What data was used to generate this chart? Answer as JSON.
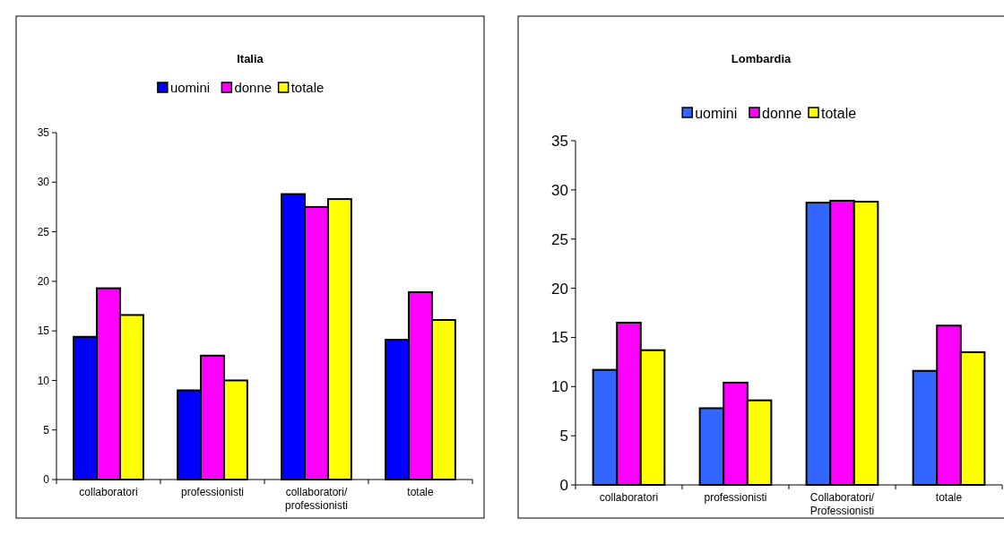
{
  "chart_data": [
    {
      "type": "bar",
      "title": "Italia",
      "categories": [
        "collaboratori",
        "professionisti",
        "collaboratori/professionisti",
        "totale"
      ],
      "series": [
        {
          "name": "uomini",
          "color": "#0000ff",
          "values": [
            14.4,
            9.0,
            28.8,
            14.1
          ]
        },
        {
          "name": "donne",
          "color": "#ff00ff",
          "values": [
            19.3,
            12.5,
            27.5,
            18.9
          ]
        },
        {
          "name": "totale",
          "color": "#ffff00",
          "values": [
            16.6,
            10.0,
            28.3,
            16.1
          ]
        }
      ],
      "ylim": [
        0,
        35
      ],
      "yticks": [
        0,
        5,
        10,
        15,
        20,
        25,
        30,
        35
      ],
      "grid": false,
      "legend": "top"
    },
    {
      "type": "bar",
      "title": "Lombardia",
      "categories": [
        "collaboratori",
        "professionisti",
        "Collaboratori/Professionisti",
        "totale"
      ],
      "series": [
        {
          "name": "uomini",
          "color": "#3366ff",
          "values": [
            11.7,
            7.8,
            28.7,
            11.6
          ]
        },
        {
          "name": "donne",
          "color": "#ff00ff",
          "values": [
            16.5,
            10.4,
            28.9,
            16.2
          ]
        },
        {
          "name": "totale",
          "color": "#ffff00",
          "values": [
            13.7,
            8.6,
            28.8,
            13.5
          ]
        }
      ],
      "ylim": [
        0,
        35
      ],
      "yticks": [
        0,
        5,
        10,
        15,
        20,
        25,
        30,
        35
      ],
      "grid": false,
      "legend": "top"
    }
  ]
}
